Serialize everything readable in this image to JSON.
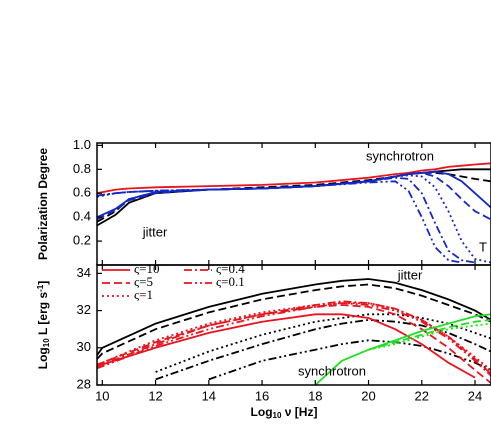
{
  "chart_data": [
    {
      "type": "line",
      "ylabel": "Polarization Degree",
      "annotations": [
        "synchrotron",
        "jitter",
        "T"
      ],
      "x": [
        9.8,
        10.5,
        11,
        12,
        14,
        16,
        18,
        20,
        21,
        21.5,
        22,
        22.5,
        23,
        23.5,
        24,
        24.6
      ],
      "xlim": [
        9.8,
        24.6
      ],
      "ylim": [
        0,
        1.02
      ],
      "yticks": [
        0.2,
        0.4,
        0.6,
        0.8,
        {
          "value": 1,
          "label": "1.0"
        }
      ],
      "series": [
        {
          "color": "#e8141e",
          "dash": "solid",
          "values": [
            0.6,
            0.63,
            0.64,
            0.65,
            0.66,
            0.67,
            0.69,
            0.73,
            0.76,
            0.77,
            0.79,
            0.8,
            0.82,
            0.83,
            0.84,
            0.85
          ]
        },
        {
          "color": "#000000",
          "dash": "solid",
          "values": [
            0.33,
            0.42,
            0.52,
            0.6,
            0.63,
            0.64,
            0.66,
            0.7,
            0.74,
            0.76,
            0.77,
            0.78,
            0.79,
            0.8,
            0.8,
            0.8
          ]
        },
        {
          "color": "#000000",
          "dash": "dashed",
          "values": [
            0.36,
            0.45,
            0.55,
            0.61,
            0.63,
            0.65,
            0.67,
            0.71,
            0.74,
            0.76,
            0.77,
            0.77,
            0.76,
            0.74,
            0.72,
            0.7
          ]
        },
        {
          "color": "#1428c8",
          "dash": "solid",
          "values": [
            0.4,
            0.47,
            0.55,
            0.61,
            0.63,
            0.64,
            0.66,
            0.7,
            0.74,
            0.76,
            0.77,
            0.78,
            0.76,
            0.7,
            0.6,
            0.48
          ]
        },
        {
          "color": "#1428c8",
          "dash": "dashed",
          "values": [
            0.38,
            0.46,
            0.54,
            0.6,
            0.63,
            0.64,
            0.66,
            0.7,
            0.74,
            0.76,
            0.77,
            0.74,
            0.66,
            0.55,
            0.45,
            0.38
          ]
        },
        {
          "color": "#1428c8",
          "dash": "dotted",
          "values": [
            0.57,
            0.6,
            0.61,
            0.62,
            0.63,
            0.64,
            0.66,
            0.7,
            0.74,
            0.75,
            0.74,
            0.65,
            0.45,
            0.2,
            0.05,
            0.02
          ]
        },
        {
          "color": "#1428c8",
          "dash": "dashdot",
          "values": [
            0.58,
            0.6,
            0.61,
            0.62,
            0.63,
            0.64,
            0.66,
            0.7,
            0.73,
            0.72,
            0.6,
            0.35,
            0.12,
            0.04,
            0.02,
            null
          ]
        },
        {
          "color": "#1428c8",
          "dash": "dashdotdot",
          "values": [
            0.58,
            0.6,
            0.61,
            0.62,
            0.63,
            0.64,
            0.66,
            0.69,
            0.7,
            0.62,
            0.4,
            0.15,
            0.04,
            0.02,
            null,
            null
          ]
        }
      ]
    },
    {
      "type": "line",
      "xlabel": [
        "Log",
        "10",
        " ν [Hz]"
      ],
      "ylabel": [
        "Log",
        "10",
        " L [erg s",
        "-1",
        "]"
      ],
      "annotations": [
        "jitter",
        "synchrotron"
      ],
      "x": [
        9.8,
        10,
        12,
        14,
        16,
        18,
        19,
        20,
        21,
        22,
        23,
        24,
        24.6
      ],
      "xlim": [
        9.8,
        24.6
      ],
      "xticks": [
        10,
        12,
        14,
        16,
        18,
        20,
        22,
        24
      ],
      "ylim": [
        28,
        34.45
      ],
      "yticks": [
        28,
        30,
        32,
        34
      ],
      "series": [
        {
          "color": "#000000",
          "dash": "solid",
          "values": [
            29.6,
            30.0,
            31.3,
            32.2,
            32.9,
            33.4,
            33.6,
            33.7,
            33.5,
            33.1,
            32.6,
            32.0,
            31.5
          ]
        },
        {
          "color": "#000000",
          "dash": "dashed",
          "values": [
            29.4,
            29.7,
            31.0,
            31.9,
            32.6,
            33.1,
            33.3,
            33.4,
            33.2,
            32.8,
            32.3,
            31.8,
            31.4
          ]
        },
        {
          "color": "#000000",
          "dash": "dotted",
          "values": [
            null,
            null,
            28.7,
            29.8,
            30.7,
            31.4,
            31.6,
            31.8,
            31.8,
            31.6,
            31.3,
            30.8,
            30.5
          ]
        },
        {
          "color": "#000000",
          "dash": "dashdot",
          "values": [
            null,
            null,
            28.3,
            29.3,
            30.2,
            31.0,
            31.3,
            31.5,
            31.4,
            31.2,
            30.8,
            30.2,
            29.8
          ]
        },
        {
          "color": "#000000",
          "dash": "dashdotdot",
          "values": [
            null,
            null,
            null,
            28.3,
            29.3,
            29.9,
            30.2,
            30.4,
            30.3,
            30.1,
            29.7,
            29.2,
            28.8
          ]
        },
        {
          "name": "ς=10",
          "color": "#e8141e",
          "dash": "solid",
          "values": [
            29.0,
            29.1,
            30.0,
            30.8,
            31.4,
            31.8,
            31.8,
            31.6,
            31.0,
            30.2,
            29.2,
            28.4,
            null
          ]
        },
        {
          "name": "ς=5",
          "color": "#e8141e",
          "dash": "dashed",
          "values": [
            29.1,
            29.2,
            30.3,
            31.2,
            31.8,
            32.2,
            32.3,
            32.2,
            31.8,
            31.0,
            30.0,
            28.8,
            28.1
          ]
        },
        {
          "name": "ς=1",
          "color": "#e8141e",
          "dash": "dotted",
          "values": [
            29.1,
            29.2,
            30.4,
            31.3,
            31.9,
            32.3,
            32.4,
            32.4,
            32.1,
            31.5,
            30.6,
            29.5,
            28.8
          ]
        },
        {
          "name": "ς=0.4",
          "color": "#e8141e",
          "dash": "dashdot",
          "values": [
            29.0,
            29.1,
            30.2,
            31.2,
            31.8,
            32.3,
            32.5,
            32.4,
            32.1,
            31.5,
            30.6,
            29.4,
            28.6
          ]
        },
        {
          "name": "ς=0.1",
          "color": "#e8141e",
          "dash": "dashdotdot",
          "values": [
            28.9,
            29.0,
            30.1,
            31.0,
            31.7,
            32.2,
            32.4,
            32.3,
            32.0,
            31.4,
            30.5,
            29.3,
            28.5
          ]
        },
        {
          "color": "#22dd22",
          "dash": "solid",
          "values": [
            null,
            null,
            null,
            null,
            null,
            28.0,
            29.3,
            29.9,
            30.4,
            30.9,
            31.3,
            31.7,
            31.8
          ]
        },
        {
          "color": "#22dd22",
          "dash": "dashed",
          "values": [
            null,
            null,
            null,
            null,
            null,
            null,
            null,
            29.9,
            30.3,
            30.7,
            31.1,
            31.4,
            31.5
          ]
        },
        {
          "color": "#22dd22",
          "dash": "dotted",
          "values": [
            null,
            null,
            null,
            null,
            null,
            null,
            null,
            29.9,
            30.2,
            30.6,
            31.0,
            31.2,
            31.3
          ]
        }
      ]
    }
  ]
}
